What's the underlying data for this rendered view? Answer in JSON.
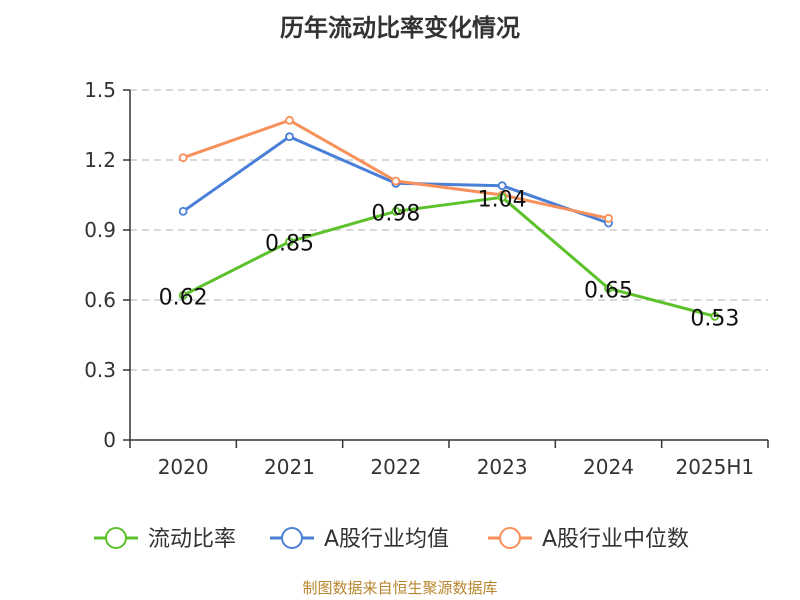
{
  "chart_data": {
    "type": "line",
    "title": "历年流动比率变化情况",
    "categories": [
      "2020",
      "2021",
      "2022",
      "2023",
      "2024",
      "2025H1"
    ],
    "ylim": [
      0,
      1.5
    ],
    "yticks": [
      "0",
      "0.3",
      "0.6",
      "0.9",
      "1.2",
      "1.5"
    ],
    "grid": true,
    "legend_position": "bottom",
    "series": [
      {
        "name": "流动比率",
        "color": "#5cc12b",
        "values": [
          0.62,
          0.85,
          0.98,
          1.04,
          0.65,
          0.53
        ],
        "labels": [
          "0.62",
          "0.85",
          "0.98",
          "1.04",
          "0.65",
          "0.53"
        ]
      },
      {
        "name": "A股行业均值",
        "color": "#4a7fd8",
        "values": [
          0.98,
          1.3,
          1.1,
          1.09,
          0.93,
          null
        ]
      },
      {
        "name": "A股行业中位数",
        "color": "#f7905a",
        "values": [
          1.21,
          1.37,
          1.11,
          1.05,
          0.95,
          null
        ]
      }
    ]
  },
  "footer": {
    "source": "制图数据来自恒生聚源数据库"
  }
}
